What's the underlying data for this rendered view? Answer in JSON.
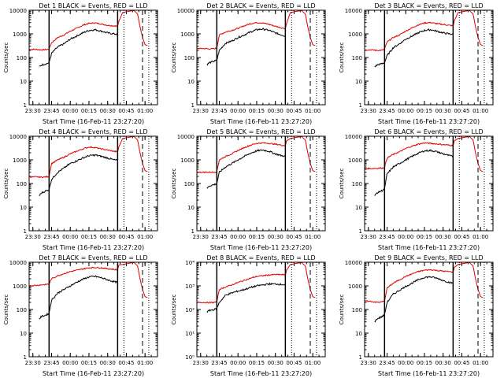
{
  "figure": {
    "common": {
      "type": "line",
      "xtick_labels": [
        "23:30",
        "23:45",
        "00:00",
        "00:15",
        "00:30",
        "00:45",
        "01:00"
      ],
      "xlabel": "Start Time (16-Feb-11 23:27:20)",
      "ylabel": "Counts/sec",
      "yscale": "log",
      "ylim": [
        1,
        10000
      ],
      "series_colors": {
        "events": "#000000",
        "lld": "#e00000"
      }
    },
    "markers": {
      "solid_start": "23:43",
      "solid_end": "00:38",
      "dotted_1": "00:43",
      "dotted_2": "01:03",
      "dashed": "00:58"
    }
  },
  "chart_data": [
    {
      "type": "line",
      "title": "Det 1 BLACK = Events, RED = LLD",
      "ytick_labels": [
        "1",
        "10",
        "100",
        "1000",
        "10000"
      ],
      "series": [
        {
          "x": [
            "23:27",
            "23:32",
            "23:37",
            "23:41",
            "23:43",
            "23:45",
            "23:50",
            "23:55",
            "00:00",
            "00:05",
            "00:10",
            "00:15",
            "00:20",
            "00:25",
            "00:30",
            "00:35",
            "00:38"
          ],
          "values": [
            220,
            220,
            210,
            215,
            230,
            420,
            700,
            900,
            1300,
            1700,
            2300,
            2800,
            2900,
            2600,
            2300,
            2200,
            2100
          ]
        },
        {
          "x": [
            "23:35",
            "23:37",
            "23:41",
            "23:43",
            "23:45",
            "23:50",
            "23:55",
            "00:00",
            "00:05",
            "00:10",
            "00:15",
            "00:20",
            "00:25",
            "00:30",
            "00:35",
            "00:38"
          ],
          "values": [
            40,
            48,
            55,
            60,
            150,
            280,
            380,
            600,
            800,
            1100,
            1400,
            1500,
            1300,
            1100,
            1000,
            950
          ]
        }
      ]
    },
    {
      "type": "line",
      "title": "Det 2 BLACK = Events, RED = LLD",
      "ytick_labels": [
        "1",
        "10",
        "100",
        "1000",
        "10000"
      ],
      "series": [
        {
          "x": [
            "23:27",
            "23:32",
            "23:37",
            "23:41",
            "23:43",
            "23:45",
            "23:50",
            "23:55",
            "00:00",
            "00:05",
            "00:10",
            "00:15",
            "00:20",
            "00:25",
            "00:30",
            "00:35",
            "00:38"
          ],
          "values": [
            240,
            240,
            230,
            235,
            250,
            900,
            1200,
            1400,
            1700,
            2200,
            2700,
            3000,
            2900,
            2500,
            2100,
            1800,
            1700
          ]
        },
        {
          "x": [
            "23:35",
            "23:37",
            "23:41",
            "23:43",
            "23:45",
            "23:50",
            "23:55",
            "00:00",
            "00:05",
            "00:10",
            "00:15",
            "00:20",
            "00:25",
            "00:30",
            "00:35",
            "00:38"
          ],
          "values": [
            50,
            60,
            70,
            75,
            200,
            400,
            500,
            700,
            900,
            1200,
            1500,
            1600,
            1400,
            1100,
            900,
            800
          ]
        }
      ]
    },
    {
      "type": "line",
      "title": "Det 3 BLACK = Events, RED = LLD",
      "ytick_labels": [
        "1",
        "10",
        "100",
        "1000",
        "10000"
      ],
      "series": [
        {
          "x": [
            "23:27",
            "23:32",
            "23:37",
            "23:41",
            "23:43",
            "23:45",
            "23:50",
            "23:55",
            "00:00",
            "00:05",
            "00:10",
            "00:15",
            "00:20",
            "00:25",
            "00:30",
            "00:35",
            "00:38"
          ],
          "values": [
            210,
            210,
            200,
            205,
            220,
            450,
            700,
            900,
            1300,
            1800,
            2400,
            2900,
            3000,
            2700,
            2500,
            2300,
            2200
          ]
        },
        {
          "x": [
            "23:35",
            "23:37",
            "23:41",
            "23:43",
            "23:45",
            "23:50",
            "23:55",
            "00:00",
            "00:05",
            "00:10",
            "00:15",
            "00:20",
            "00:25",
            "00:30",
            "00:35",
            "00:38"
          ],
          "values": [
            40,
            48,
            55,
            60,
            120,
            260,
            380,
            600,
            800,
            1100,
            1400,
            1500,
            1300,
            1100,
            1000,
            950
          ]
        }
      ]
    },
    {
      "type": "line",
      "title": "Det 4 BLACK = Events, RED = LLD",
      "ytick_labels": [
        "1",
        "10",
        "100",
        "1000",
        "10000"
      ],
      "series": [
        {
          "x": [
            "23:27",
            "23:32",
            "23:37",
            "23:41",
            "23:43",
            "23:45",
            "23:50",
            "23:55",
            "00:00",
            "00:05",
            "00:10",
            "00:15",
            "00:20",
            "00:25",
            "00:30",
            "00:35",
            "00:38"
          ],
          "values": [
            190,
            190,
            185,
            190,
            200,
            700,
            1000,
            1300,
            1800,
            2300,
            2900,
            3500,
            3300,
            2900,
            2600,
            2300,
            2200
          ]
        },
        {
          "x": [
            "23:35",
            "23:37",
            "23:41",
            "23:43",
            "23:45",
            "23:50",
            "23:55",
            "00:00",
            "00:05",
            "00:10",
            "00:15",
            "00:20",
            "00:25",
            "00:30",
            "00:35",
            "00:38"
          ],
          "values": [
            30,
            40,
            50,
            55,
            150,
            300,
            450,
            700,
            900,
            1200,
            1500,
            1600,
            1400,
            1200,
            1000,
            950
          ]
        }
      ]
    },
    {
      "type": "line",
      "title": "Det 5 BLACK = Events, RED = LLD",
      "ytick_labels": [
        "1",
        "10",
        "100",
        "1000",
        "10000"
      ],
      "series": [
        {
          "x": [
            "23:27",
            "23:32",
            "23:37",
            "23:41",
            "23:43",
            "23:45",
            "23:50",
            "23:55",
            "00:00",
            "00:05",
            "00:10",
            "00:15",
            "00:20",
            "00:25",
            "00:30",
            "00:35",
            "00:38"
          ],
          "values": [
            300,
            300,
            300,
            300,
            320,
            1000,
            1400,
            1800,
            2500,
            3300,
            4200,
            5000,
            5200,
            5000,
            4600,
            4200,
            4000
          ]
        },
        {
          "x": [
            "23:35",
            "23:37",
            "23:41",
            "23:43",
            "23:45",
            "23:50",
            "23:55",
            "00:00",
            "00:05",
            "00:10",
            "00:15",
            "00:20",
            "00:25",
            "00:30",
            "00:35",
            "00:38"
          ],
          "values": [
            60,
            80,
            90,
            100,
            300,
            500,
            700,
            1000,
            1400,
            1900,
            2400,
            2600,
            2300,
            1800,
            1500,
            1400
          ]
        }
      ]
    },
    {
      "type": "line",
      "title": "Det 6 BLACK = Events, RED = LLD",
      "ytick_labels": [
        "1",
        "10",
        "100",
        "1000",
        "10000"
      ],
      "series": [
        {
          "x": [
            "23:27",
            "23:32",
            "23:37",
            "23:41",
            "23:43",
            "23:45",
            "23:50",
            "23:55",
            "00:00",
            "00:05",
            "00:10",
            "00:15",
            "00:20",
            "00:25",
            "00:30",
            "00:35",
            "00:38"
          ],
          "values": [
            430,
            430,
            440,
            450,
            470,
            1200,
            1700,
            2200,
            3000,
            3800,
            4600,
            5200,
            5000,
            4700,
            4400,
            4200,
            4000
          ]
        },
        {
          "x": [
            "23:35",
            "23:37",
            "23:41",
            "23:43",
            "23:45",
            "23:50",
            "23:55",
            "00:00",
            "00:05",
            "00:10",
            "00:15",
            "00:20",
            "00:25",
            "00:30",
            "00:35",
            "00:38"
          ],
          "values": [
            30,
            40,
            50,
            60,
            250,
            500,
            700,
            1000,
            1400,
            1900,
            2400,
            2500,
            2200,
            1800,
            1500,
            1400
          ]
        }
      ]
    },
    {
      "type": "line",
      "title": "Det 7 BLACK = Events, RED = LLD",
      "ytick_labels": [
        "1",
        "10",
        "100",
        "1000",
        "10000"
      ],
      "series": [
        {
          "x": [
            "23:27",
            "23:32",
            "23:37",
            "23:41",
            "23:43",
            "23:45",
            "23:50",
            "23:55",
            "00:00",
            "00:05",
            "00:10",
            "00:15",
            "00:20",
            "00:25",
            "00:30",
            "00:35",
            "00:38"
          ],
          "values": [
            1000,
            1050,
            1100,
            1150,
            1200,
            2000,
            2700,
            3300,
            4000,
            4600,
            5200,
            5800,
            6000,
            5800,
            5300,
            5000,
            4800
          ]
        },
        {
          "x": [
            "23:35",
            "23:37",
            "23:41",
            "23:43",
            "23:45",
            "23:50",
            "23:55",
            "00:00",
            "00:05",
            "00:10",
            "00:15",
            "00:20",
            "00:25",
            "00:30",
            "00:35",
            "00:38"
          ],
          "values": [
            40,
            50,
            60,
            70,
            250,
            500,
            700,
            1000,
            1400,
            1900,
            2400,
            2500,
            2200,
            1800,
            1500,
            1400
          ]
        }
      ]
    },
    {
      "type": "line",
      "title": "Det 8 BLACK = Events, RED = LLD",
      "ytick_labels": [
        "10⁰",
        "10¹",
        "10²",
        "10³",
        "10⁴"
      ],
      "series": [
        {
          "x": [
            "23:27",
            "23:32",
            "23:37",
            "23:41",
            "23:43",
            "23:45",
            "23:50",
            "23:55",
            "00:00",
            "00:05",
            "00:10",
            "00:15",
            "00:20",
            "00:25",
            "00:30",
            "00:35",
            "00:38"
          ],
          "values": [
            200,
            200,
            195,
            200,
            210,
            700,
            900,
            1100,
            1400,
            1700,
            2100,
            2500,
            2700,
            2900,
            3000,
            3000,
            2900
          ]
        },
        {
          "x": [
            "23:35",
            "23:37",
            "23:41",
            "23:43",
            "23:45",
            "23:50",
            "23:55",
            "00:00",
            "00:05",
            "00:10",
            "00:15",
            "00:20",
            "00:25",
            "00:30",
            "00:35",
            "00:38"
          ],
          "values": [
            80,
            90,
            100,
            110,
            200,
            400,
            500,
            600,
            700,
            850,
            1000,
            1100,
            1200,
            1200,
            1150,
            1100
          ]
        }
      ]
    },
    {
      "type": "line",
      "title": "Det 9 BLACK = Events, RED = LLD",
      "ytick_labels": [
        "1",
        "10",
        "100",
        "1000",
        "10000"
      ],
      "series": [
        {
          "x": [
            "23:27",
            "23:32",
            "23:37",
            "23:41",
            "23:43",
            "23:45",
            "23:50",
            "23:55",
            "00:00",
            "00:05",
            "00:10",
            "00:15",
            "00:20",
            "00:25",
            "00:30",
            "00:35",
            "00:38"
          ],
          "values": [
            230,
            220,
            200,
            210,
            230,
            800,
            1300,
            1800,
            2500,
            3200,
            4000,
            4600,
            4800,
            4500,
            4200,
            4000,
            3800
          ]
        },
        {
          "x": [
            "23:35",
            "23:37",
            "23:41",
            "23:43",
            "23:45",
            "23:50",
            "23:55",
            "00:00",
            "00:05",
            "00:10",
            "00:15",
            "00:20",
            "00:25",
            "00:30",
            "00:35",
            "00:38"
          ],
          "values": [
            30,
            40,
            50,
            60,
            200,
            450,
            650,
            950,
            1300,
            1800,
            2300,
            2400,
            2100,
            1700,
            1400,
            1300
          ]
        }
      ]
    }
  ]
}
